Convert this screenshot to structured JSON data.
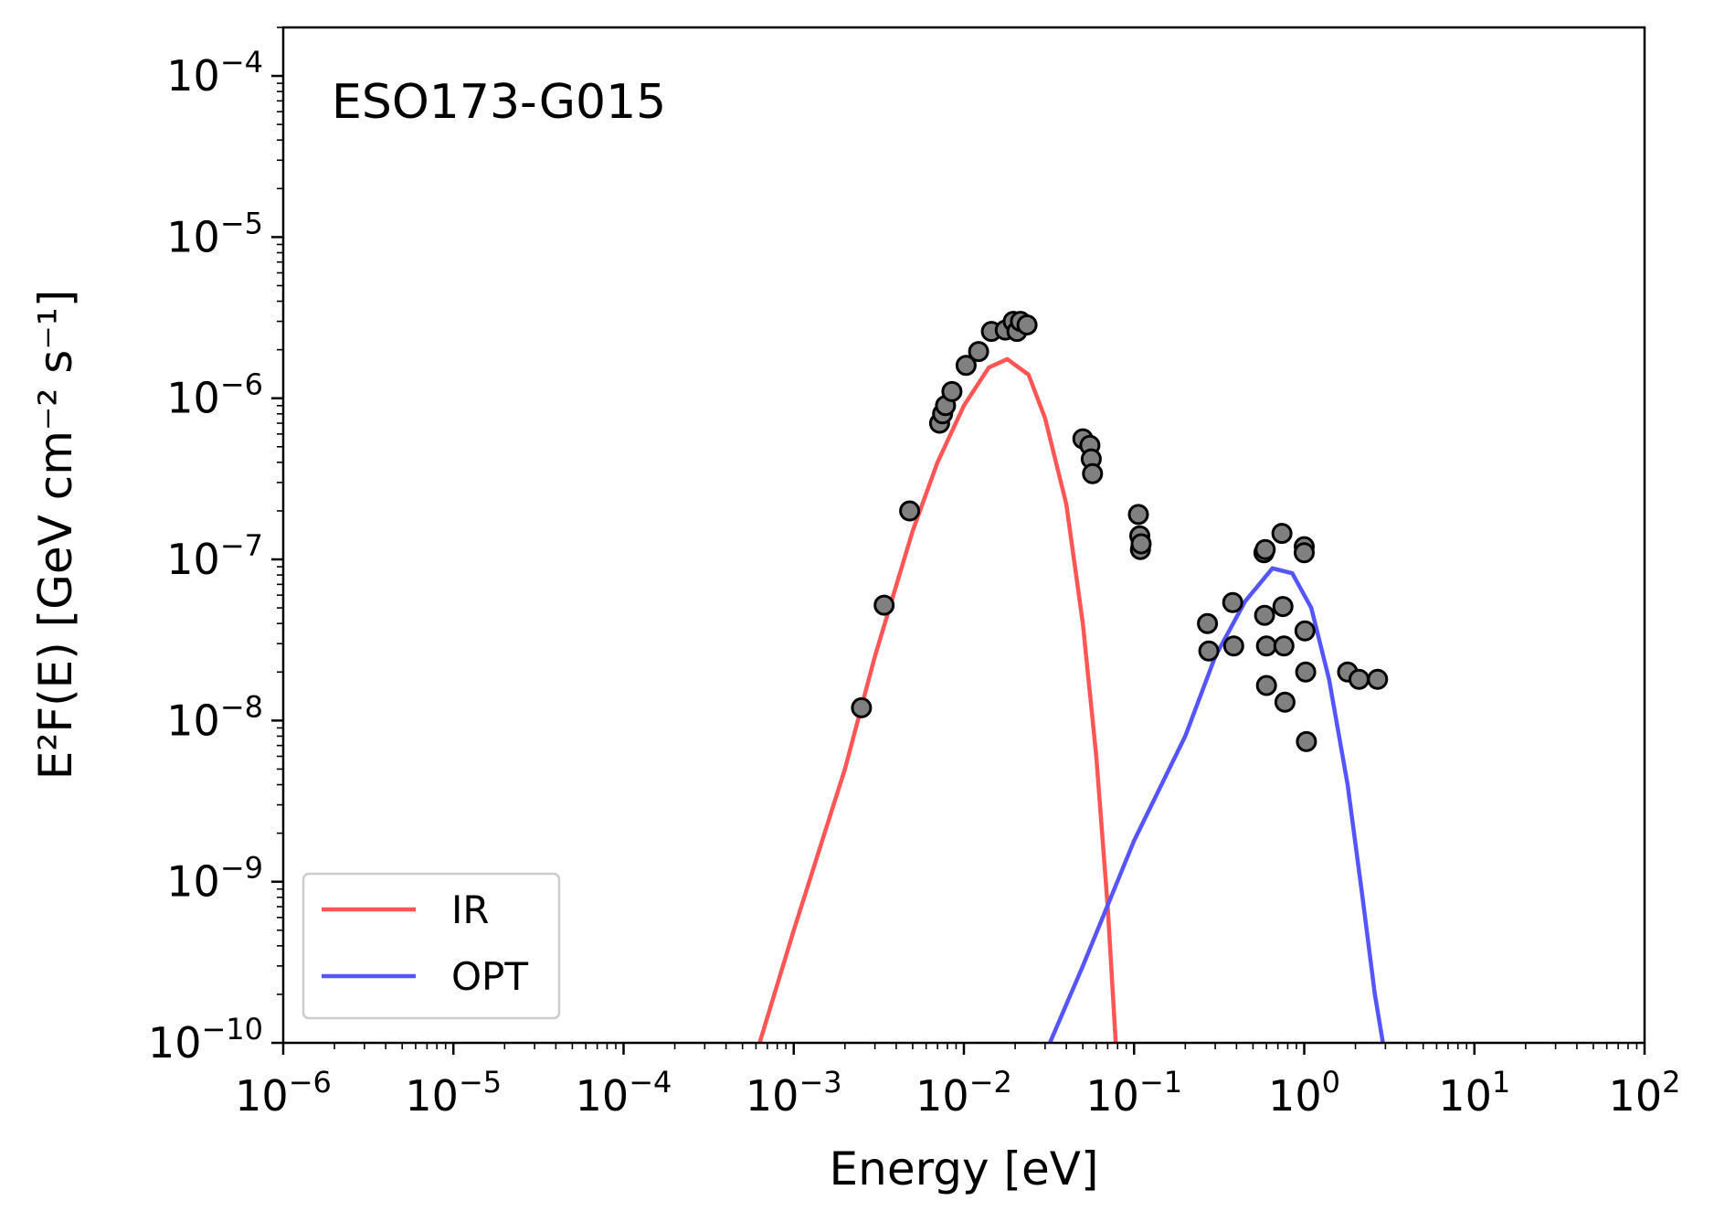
{
  "chart_data": {
    "type": "line",
    "x_scale": "log",
    "y_scale": "log",
    "xlim": [
      1e-06,
      100
    ],
    "ylim": [
      1e-10,
      0.0002
    ],
    "xlabel": "Energy [eV]",
    "ylabel": "E²F(E) [GeV cm⁻² s⁻¹]",
    "annotation": "ESO173-G015",
    "x_ticks": [
      {
        "base": "10",
        "exp": "−6",
        "value": 1e-06
      },
      {
        "base": "10",
        "exp": "−5",
        "value": 1e-05
      },
      {
        "base": "10",
        "exp": "−4",
        "value": 0.0001
      },
      {
        "base": "10",
        "exp": "−3",
        "value": 0.001
      },
      {
        "base": "10",
        "exp": "−2",
        "value": 0.01
      },
      {
        "base": "10",
        "exp": "−1",
        "value": 0.1
      },
      {
        "base": "10",
        "exp": "0",
        "value": 1
      },
      {
        "base": "10",
        "exp": "1",
        "value": 10
      },
      {
        "base": "10",
        "exp": "2",
        "value": 100
      }
    ],
    "y_ticks": [
      {
        "base": "10",
        "exp": "−10",
        "value": 1e-10
      },
      {
        "base": "10",
        "exp": "−9",
        "value": 1e-09
      },
      {
        "base": "10",
        "exp": "−8",
        "value": 1e-08
      },
      {
        "base": "10",
        "exp": "−7",
        "value": 1e-07
      },
      {
        "base": "10",
        "exp": "−6",
        "value": 1e-06
      },
      {
        "base": "10",
        "exp": "−5",
        "value": 1e-05
      },
      {
        "base": "10",
        "exp": "−4",
        "value": 0.0001
      }
    ],
    "legend": {
      "position": "lower-left",
      "entries": [
        "IR",
        "OPT"
      ]
    },
    "series": [
      {
        "name": "IR",
        "color": "#ff5555",
        "x": [
          0.00063,
          0.001,
          0.002,
          0.003,
          0.005,
          0.007,
          0.01,
          0.014,
          0.018,
          0.024,
          0.03,
          0.04,
          0.05,
          0.06,
          0.07,
          0.078
        ],
        "y": [
          1e-10,
          5e-10,
          5e-09,
          2.5e-08,
          1.5e-07,
          4e-07,
          9e-07,
          1.55e-06,
          1.75e-06,
          1.4e-06,
          7.5e-07,
          2.2e-07,
          4e-08,
          6e-09,
          7e-10,
          1e-10
        ]
      },
      {
        "name": "OPT",
        "color": "#5555ff",
        "x": [
          0.032,
          0.05,
          0.1,
          0.2,
          0.3,
          0.45,
          0.65,
          0.85,
          1.1,
          1.4,
          1.8,
          2.2,
          2.6,
          2.9
        ],
        "y": [
          1e-10,
          3e-10,
          1.8e-09,
          8e-09,
          2.5e-08,
          5.5e-08,
          8.8e-08,
          8.2e-08,
          5e-08,
          1.8e-08,
          4e-09,
          8e-10,
          2e-10,
          1e-10
        ]
      }
    ],
    "points": {
      "color": "#808080",
      "x": [
        0.0025,
        0.0034,
        0.0048,
        0.0072,
        0.0075,
        0.0078,
        0.0085,
        0.0103,
        0.0122,
        0.0145,
        0.0175,
        0.0195,
        0.0205,
        0.0215,
        0.0235,
        0.05,
        0.055,
        0.056,
        0.057,
        0.106,
        0.108,
        0.109,
        0.11,
        0.27,
        0.275,
        0.38,
        0.385,
        0.58,
        0.59,
        0.585,
        0.6,
        0.6,
        0.74,
        0.75,
        0.76,
        0.77,
        1.0,
        1.0,
        1.01,
        1.02,
        1.03,
        1.8,
        2.1,
        2.7
      ],
      "y": [
        1.2e-08,
        5.2e-08,
        2e-07,
        7e-07,
        8e-07,
        9e-07,
        1.1e-06,
        1.6e-06,
        1.95e-06,
        2.6e-06,
        2.65e-06,
        3e-06,
        2.6e-06,
        3e-06,
        2.85e-06,
        5.6e-07,
        5.1e-07,
        4.2e-07,
        3.4e-07,
        1.9e-07,
        1.4e-07,
        1.15e-07,
        1.25e-07,
        4e-08,
        2.7e-08,
        5.4e-08,
        2.9e-08,
        1.1e-07,
        1.15e-07,
        4.5e-08,
        2.9e-08,
        1.65e-08,
        1.45e-07,
        5.1e-08,
        2.9e-08,
        1.3e-08,
        1.2e-07,
        1.1e-07,
        3.6e-08,
        2e-08,
        7.4e-09,
        2e-08,
        1.8e-08,
        1.8e-08
      ]
    }
  }
}
